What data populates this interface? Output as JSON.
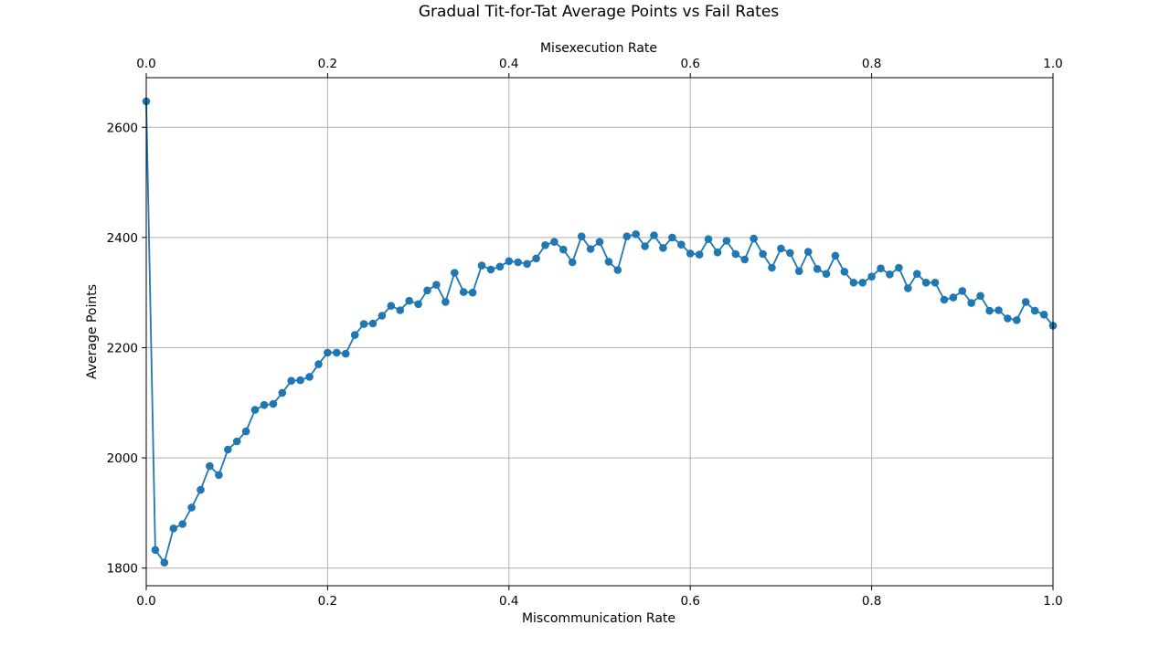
{
  "chart_data": {
    "type": "line",
    "title": "Gradual Tit-for-Tat Average Points vs Fail Rates",
    "xlabel": "Miscommunication Rate",
    "x2label": "Misexecution Rate",
    "ylabel": "Average Points",
    "xlim": [
      0,
      1
    ],
    "ylim": [
      1768,
      2690
    ],
    "xticks": [
      "0.0",
      "0.2",
      "0.4",
      "0.6",
      "0.8",
      "1.0"
    ],
    "x2ticks": [
      "0.0",
      "0.2",
      "0.4",
      "0.6",
      "0.8",
      "1.0"
    ],
    "yticks": [
      "1800",
      "2000",
      "2200",
      "2400",
      "2600"
    ],
    "grid": true,
    "marker": "circle",
    "color": "#1f77b4",
    "x": [
      0.0,
      0.01,
      0.02,
      0.03,
      0.04,
      0.05,
      0.06,
      0.07,
      0.08,
      0.09,
      0.1,
      0.11,
      0.12,
      0.13,
      0.14,
      0.15,
      0.16,
      0.17,
      0.18,
      0.19,
      0.2,
      0.21,
      0.22,
      0.23,
      0.24,
      0.25,
      0.26,
      0.27,
      0.28,
      0.29,
      0.3,
      0.31,
      0.32,
      0.33,
      0.34,
      0.35,
      0.36,
      0.37,
      0.38,
      0.39,
      0.4,
      0.41,
      0.42,
      0.43,
      0.44,
      0.45,
      0.46,
      0.47,
      0.48,
      0.49,
      0.5,
      0.51,
      0.52,
      0.53,
      0.54,
      0.55,
      0.56,
      0.57,
      0.58,
      0.59,
      0.6,
      0.61,
      0.62,
      0.63,
      0.64,
      0.65,
      0.66,
      0.67,
      0.68,
      0.69,
      0.7,
      0.71,
      0.72,
      0.73,
      0.74,
      0.75,
      0.76,
      0.77,
      0.78,
      0.79,
      0.8,
      0.81,
      0.82,
      0.83,
      0.84,
      0.85,
      0.86,
      0.87,
      0.88,
      0.89,
      0.9,
      0.91,
      0.92,
      0.93,
      0.94,
      0.95,
      0.96,
      0.97,
      0.98,
      0.99,
      1.0
    ],
    "y": [
      2647,
      1833,
      1810,
      1872,
      1880,
      1910,
      1942,
      1985,
      1969,
      2015,
      2030,
      2048,
      2087,
      2096,
      2098,
      2118,
      2140,
      2141,
      2147,
      2170,
      2191,
      2191,
      2189,
      2223,
      2243,
      2244,
      2258,
      2276,
      2268,
      2285,
      2279,
      2304,
      2314,
      2283,
      2336,
      2301,
      2300,
      2349,
      2342,
      2347,
      2357,
      2355,
      2352,
      2362,
      2386,
      2392,
      2378,
      2355,
      2402,
      2379,
      2392,
      2356,
      2341,
      2402,
      2406,
      2384,
      2404,
      2381,
      2400,
      2387,
      2371,
      2369,
      2397,
      2373,
      2394,
      2370,
      2360,
      2398,
      2370,
      2345,
      2380,
      2372,
      2339,
      2374,
      2343,
      2334,
      2367,
      2338,
      2318,
      2318,
      2329,
      2344,
      2333,
      2345,
      2308,
      2334,
      2318,
      2318,
      2287,
      2291,
      2303,
      2281,
      2294,
      2267,
      2268,
      2253,
      2250,
      2283,
      2267,
      2260,
      2240
    ]
  }
}
